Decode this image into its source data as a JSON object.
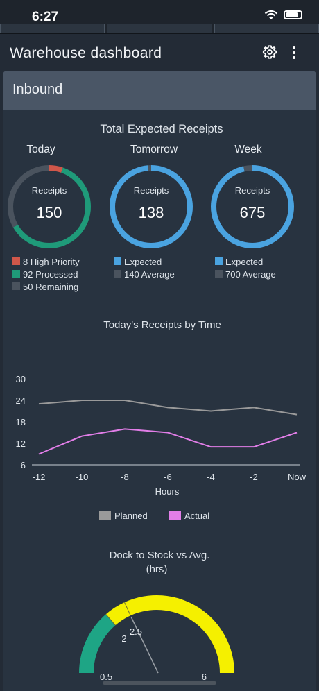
{
  "status_bar": {
    "time": "6:27"
  },
  "app": {
    "title": "Warehouse dashboard"
  },
  "section": {
    "title": "Inbound"
  },
  "receipts": {
    "heading": "Total Expected Receipts",
    "donuts": [
      {
        "period": "Today",
        "label": "Receipts",
        "value": "150",
        "legend": [
          {
            "text": "8 High Priority",
            "color": "#d0574a"
          },
          {
            "text": "92 Processed",
            "color": "#1f9a79"
          },
          {
            "text": "50 Remaining",
            "color": "#4a535e"
          }
        ],
        "segments": [
          {
            "fraction": 0.0533,
            "color": "#d0574a"
          },
          {
            "fraction": 0.6133,
            "color": "#1f9a79"
          },
          {
            "fraction": 0.3334,
            "color": "#4a535e"
          }
        ]
      },
      {
        "period": "Tomorrow",
        "label": "Receipts",
        "value": "138",
        "legend": [
          {
            "text": "Expected",
            "color": "#4aa3e0"
          },
          {
            "text": "140 Average",
            "color": "#4a535e"
          }
        ],
        "segments": [
          {
            "fraction": 0.9857,
            "color": "#4aa3e0"
          },
          {
            "fraction": 0.0143,
            "color": "#4a535e"
          }
        ]
      },
      {
        "period": "Week",
        "label": "Receipts",
        "value": "675",
        "legend": [
          {
            "text": "Expected",
            "color": "#4aa3e0"
          },
          {
            "text": "700 Average",
            "color": "#4a535e"
          }
        ],
        "segments": [
          {
            "fraction": 0.9643,
            "color": "#4aa3e0"
          },
          {
            "fraction": 0.0357,
            "color": "#4a535e"
          }
        ]
      }
    ]
  },
  "chart_data": [
    {
      "type": "line",
      "title": "Today's Receipts by Time",
      "xlabel": "Hours",
      "ylabel": "",
      "categories": [
        "-12",
        "-10",
        "-8",
        "-6",
        "-4",
        "-2",
        "Now"
      ],
      "x": [
        -12,
        -11,
        -10,
        -9,
        -8,
        -7,
        -6,
        -5,
        -4,
        -3,
        -2,
        -1,
        0
      ],
      "ylim": [
        6,
        30
      ],
      "yticks": [
        30,
        24,
        18,
        12,
        6
      ],
      "series": [
        {
          "name": "Planned",
          "color": "#9a9a9a",
          "values": [
            23,
            23.5,
            24,
            24,
            24,
            23,
            22,
            21.5,
            21,
            21.5,
            22,
            21,
            20
          ]
        },
        {
          "name": "Actual",
          "color": "#e27ee8",
          "values": [
            9,
            11.5,
            14,
            15,
            16,
            15.5,
            15,
            13,
            11,
            11,
            11,
            13,
            15
          ]
        }
      ],
      "legend_position": "bottom"
    },
    {
      "type": "gauge",
      "title": "Dock to Stock vs Avg.",
      "subtitle": "(hrs)",
      "min": 0.5,
      "max": 6,
      "bands": [
        {
          "from": 0.5,
          "to": 2,
          "color": "#1ea585"
        },
        {
          "from": 2,
          "to": 2.5,
          "color": "#f5f000"
        },
        {
          "from": 2.5,
          "to": 6,
          "color": "#f5f000"
        }
      ],
      "markers": [
        2,
        2.5
      ],
      "value": 2.5,
      "labels": {
        "min": "0.5",
        "max": "6",
        "marker_a": "2",
        "marker_b": "2.5"
      }
    }
  ]
}
